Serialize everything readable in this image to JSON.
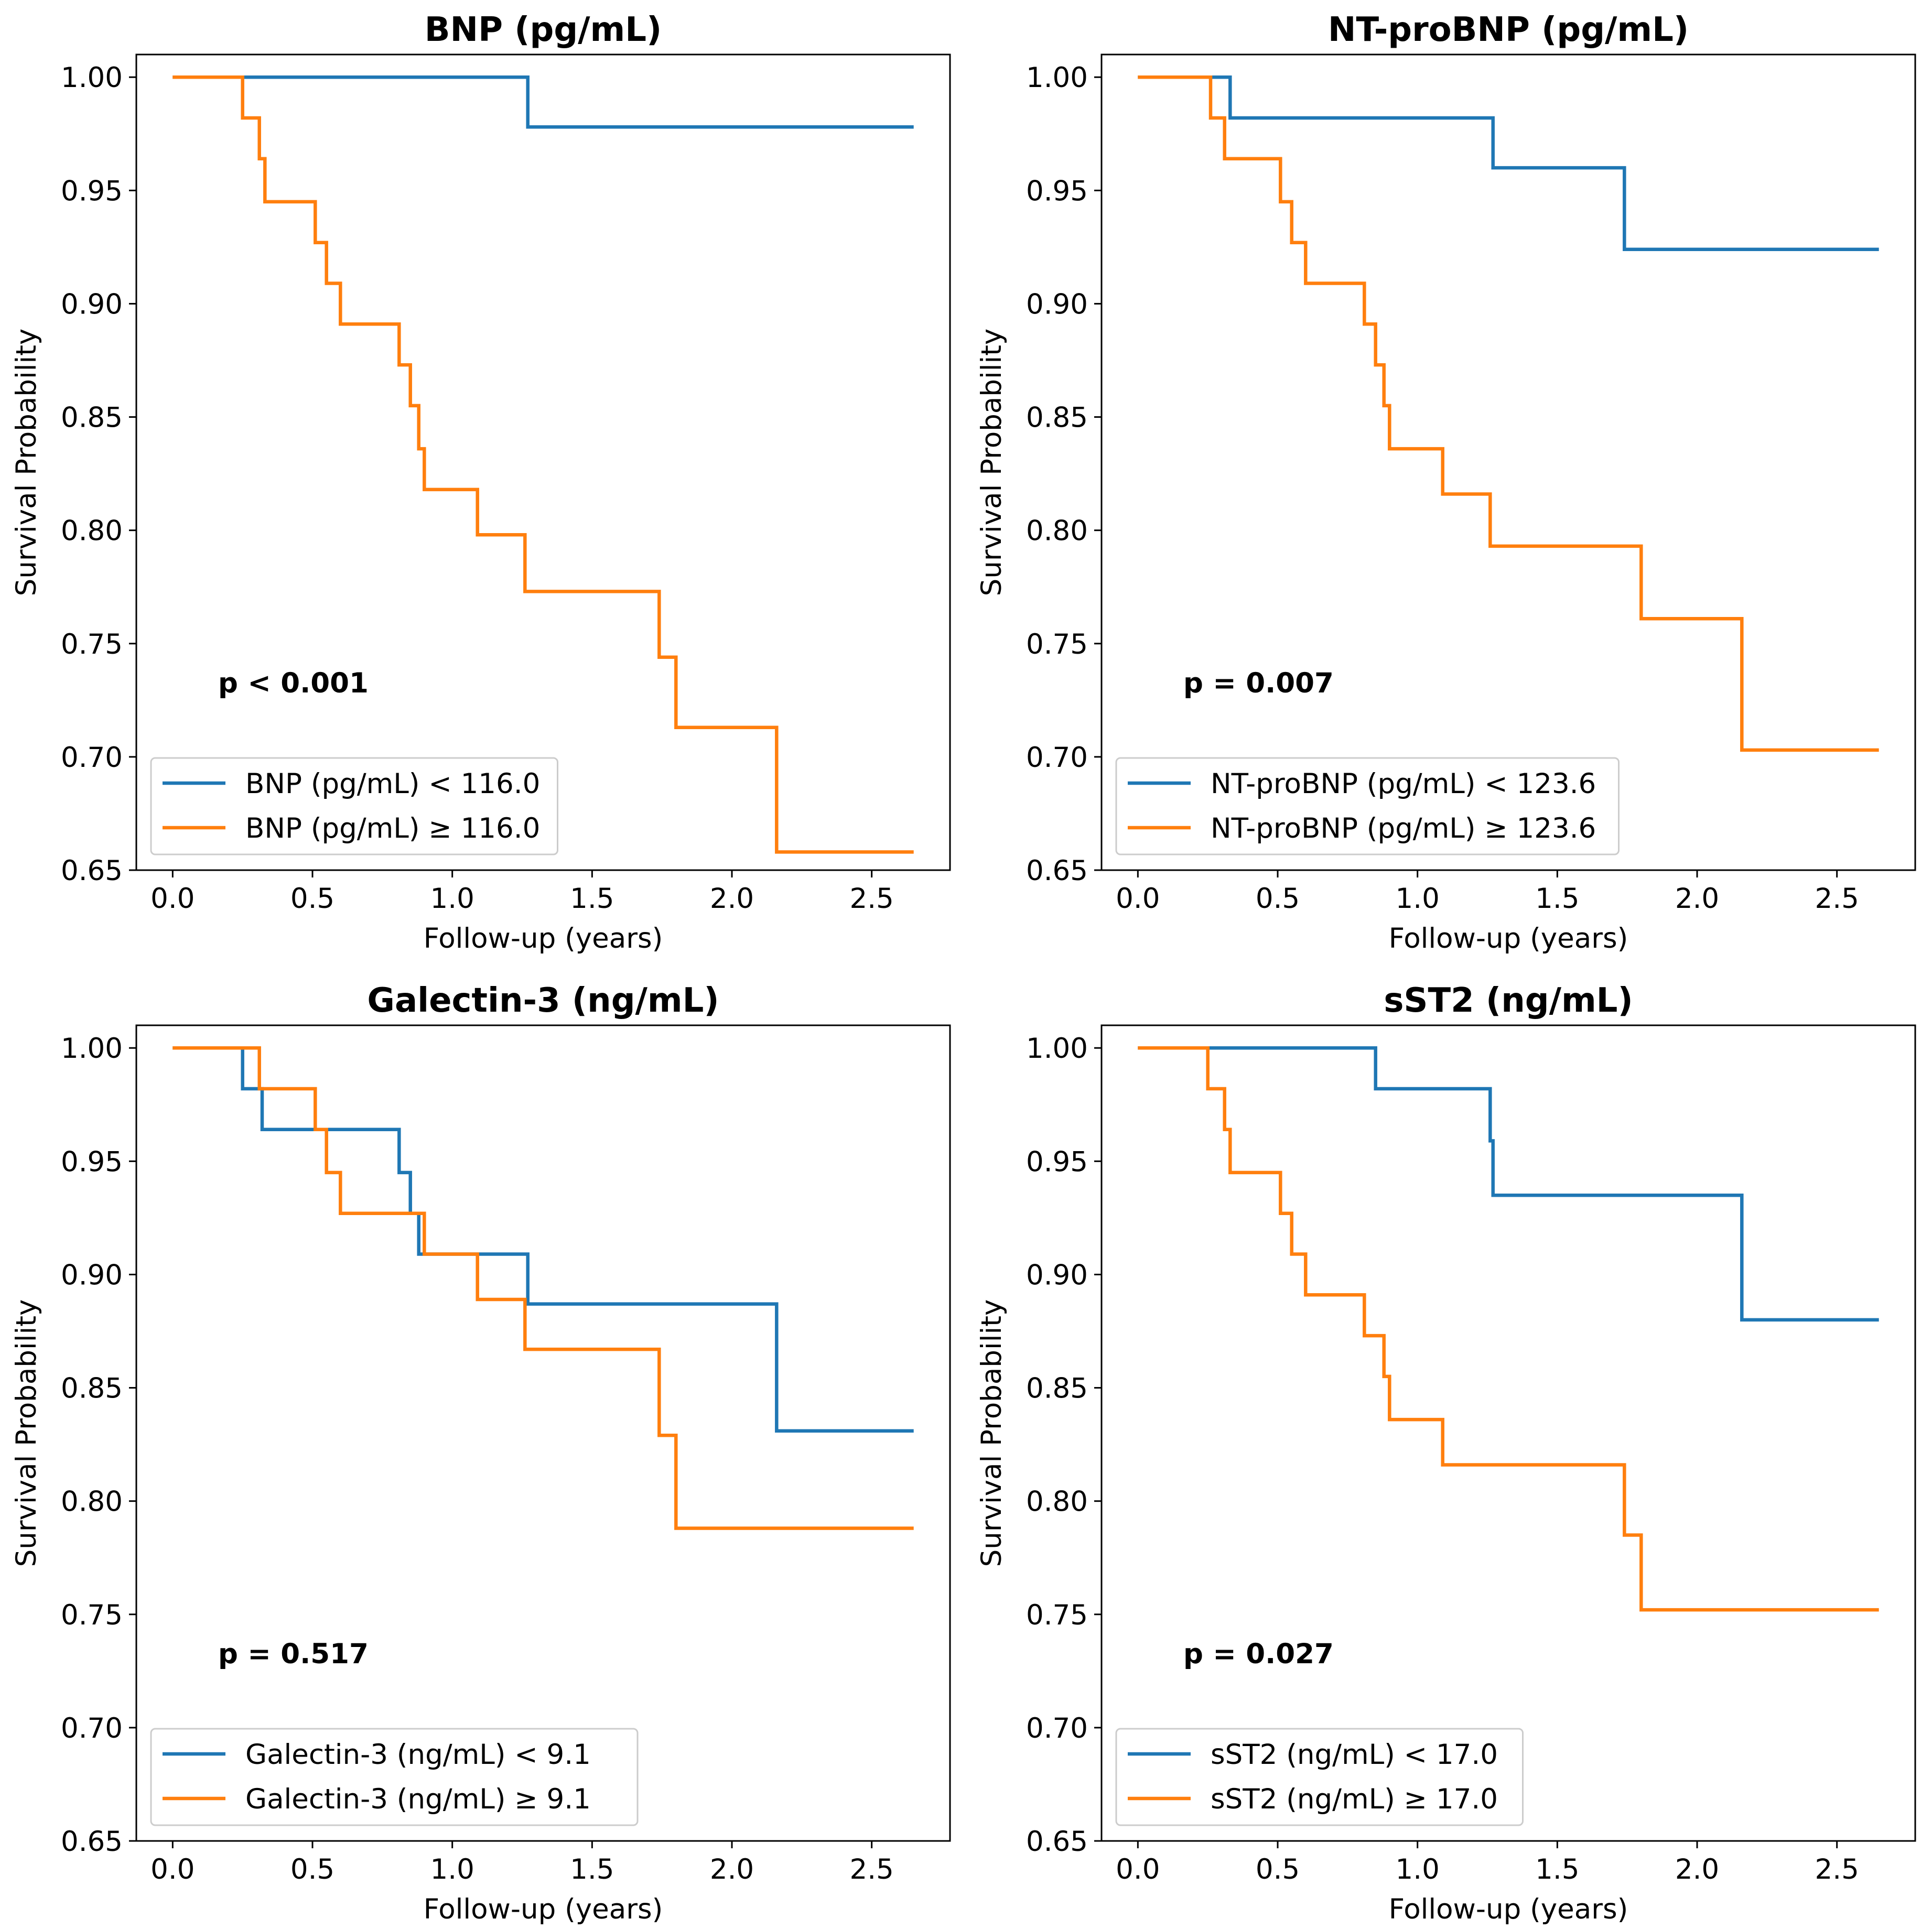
{
  "chart_data": [
    {
      "type": "line",
      "title": "BNP (pg/mL)",
      "xlabel": "Follow-up (years)",
      "ylabel": "Survival Probability",
      "xlim": [
        -0.13,
        2.78
      ],
      "ylim": [
        0.65,
        1.01
      ],
      "xticks": [
        "0.0",
        "0.5",
        "1.0",
        "1.5",
        "2.0",
        "2.5"
      ],
      "yticks": [
        "0.65",
        "0.70",
        "0.75",
        "0.80",
        "0.85",
        "0.90",
        "0.95",
        "1.00"
      ],
      "annotation": "p < 0.001",
      "legend_position": "lower-left",
      "series": [
        {
          "name": "BNP (pg/mL) < 116.0",
          "color": "#1f77b4",
          "steps": [
            [
              0,
              1.0
            ],
            [
              1.27,
              0.978
            ],
            [
              2.65,
              0.978
            ]
          ]
        },
        {
          "name": "BNP (pg/mL) ≥ 116.0",
          "color": "#ff7f0e",
          "steps": [
            [
              0,
              1.0
            ],
            [
              0.25,
              0.982
            ],
            [
              0.31,
              0.964
            ],
            [
              0.33,
              0.945
            ],
            [
              0.51,
              0.927
            ],
            [
              0.55,
              0.909
            ],
            [
              0.6,
              0.891
            ],
            [
              0.81,
              0.873
            ],
            [
              0.85,
              0.855
            ],
            [
              0.88,
              0.836
            ],
            [
              0.9,
              0.818
            ],
            [
              1.09,
              0.798
            ],
            [
              1.26,
              0.773
            ],
            [
              1.74,
              0.744
            ],
            [
              1.8,
              0.713
            ],
            [
              2.16,
              0.658
            ],
            [
              2.65,
              0.658
            ]
          ]
        }
      ]
    },
    {
      "type": "line",
      "title": "NT-proBNP (pg/mL)",
      "xlabel": "Follow-up (years)",
      "ylabel": "Survival Probability",
      "xlim": [
        -0.13,
        2.78
      ],
      "ylim": [
        0.65,
        1.01
      ],
      "xticks": [
        "0.0",
        "0.5",
        "1.0",
        "1.5",
        "2.0",
        "2.5"
      ],
      "yticks": [
        "0.65",
        "0.70",
        "0.75",
        "0.80",
        "0.85",
        "0.90",
        "0.95",
        "1.00"
      ],
      "annotation": "p = 0.007",
      "legend_position": "lower-left",
      "series": [
        {
          "name": "NT-proBNP (pg/mL) < 123.6",
          "color": "#1f77b4",
          "steps": [
            [
              0,
              1.0
            ],
            [
              0.33,
              0.982
            ],
            [
              1.27,
              0.96
            ],
            [
              1.74,
              0.924
            ],
            [
              2.65,
              0.924
            ]
          ]
        },
        {
          "name": "NT-proBNP (pg/mL) ≥ 123.6",
          "color": "#ff7f0e",
          "steps": [
            [
              0,
              1.0
            ],
            [
              0.26,
              0.982
            ],
            [
              0.31,
              0.964
            ],
            [
              0.51,
              0.945
            ],
            [
              0.55,
              0.927
            ],
            [
              0.6,
              0.909
            ],
            [
              0.81,
              0.891
            ],
            [
              0.85,
              0.873
            ],
            [
              0.88,
              0.855
            ],
            [
              0.9,
              0.836
            ],
            [
              1.09,
              0.816
            ],
            [
              1.26,
              0.793
            ],
            [
              1.8,
              0.761
            ],
            [
              2.16,
              0.703
            ],
            [
              2.65,
              0.703
            ]
          ]
        }
      ]
    },
    {
      "type": "line",
      "title": "Galectin-3 (ng/mL)",
      "xlabel": "Follow-up (years)",
      "ylabel": "Survival Probability",
      "xlim": [
        -0.13,
        2.78
      ],
      "ylim": [
        0.65,
        1.01
      ],
      "xticks": [
        "0.0",
        "0.5",
        "1.0",
        "1.5",
        "2.0",
        "2.5"
      ],
      "yticks": [
        "0.65",
        "0.70",
        "0.75",
        "0.80",
        "0.85",
        "0.90",
        "0.95",
        "1.00"
      ],
      "annotation": "p = 0.517",
      "legend_position": "lower-left",
      "series": [
        {
          "name": "Galectin-3 (ng/mL) < 9.1",
          "color": "#1f77b4",
          "steps": [
            [
              0,
              1.0
            ],
            [
              0.25,
              0.982
            ],
            [
              0.32,
              0.964
            ],
            [
              0.81,
              0.945
            ],
            [
              0.85,
              0.927
            ],
            [
              0.88,
              0.909
            ],
            [
              1.27,
              0.887
            ],
            [
              2.16,
              0.831
            ],
            [
              2.65,
              0.831
            ]
          ]
        },
        {
          "name": "Galectin-3 (ng/mL) ≥ 9.1",
          "color": "#ff7f0e",
          "steps": [
            [
              0,
              1.0
            ],
            [
              0.31,
              0.982
            ],
            [
              0.51,
              0.964
            ],
            [
              0.55,
              0.945
            ],
            [
              0.6,
              0.927
            ],
            [
              0.9,
              0.909
            ],
            [
              1.09,
              0.889
            ],
            [
              1.26,
              0.867
            ],
            [
              1.74,
              0.829
            ],
            [
              1.8,
              0.788
            ],
            [
              2.65,
              0.788
            ]
          ]
        }
      ]
    },
    {
      "type": "line",
      "title": "sST2 (ng/mL)",
      "xlabel": "Follow-up (years)",
      "ylabel": "Survival Probability",
      "xlim": [
        -0.13,
        2.78
      ],
      "ylim": [
        0.65,
        1.01
      ],
      "xticks": [
        "0.0",
        "0.5",
        "1.0",
        "1.5",
        "2.0",
        "2.5"
      ],
      "yticks": [
        "0.65",
        "0.70",
        "0.75",
        "0.80",
        "0.85",
        "0.90",
        "0.95",
        "1.00"
      ],
      "annotation": "p = 0.027",
      "legend_position": "lower-left",
      "series": [
        {
          "name": "sST2 (ng/mL) < 17.0",
          "color": "#1f77b4",
          "steps": [
            [
              0,
              1.0
            ],
            [
              0.85,
              0.982
            ],
            [
              1.26,
              0.959
            ],
            [
              1.27,
              0.935
            ],
            [
              2.16,
              0.88
            ],
            [
              2.65,
              0.88
            ]
          ]
        },
        {
          "name": "sST2 (ng/mL) ≥ 17.0",
          "color": "#ff7f0e",
          "steps": [
            [
              0,
              1.0
            ],
            [
              0.25,
              0.982
            ],
            [
              0.31,
              0.964
            ],
            [
              0.33,
              0.945
            ],
            [
              0.51,
              0.927
            ],
            [
              0.55,
              0.909
            ],
            [
              0.6,
              0.891
            ],
            [
              0.81,
              0.873
            ],
            [
              0.88,
              0.855
            ],
            [
              0.9,
              0.836
            ],
            [
              1.09,
              0.816
            ],
            [
              1.74,
              0.785
            ],
            [
              1.8,
              0.752
            ],
            [
              2.65,
              0.752
            ]
          ]
        }
      ]
    }
  ]
}
